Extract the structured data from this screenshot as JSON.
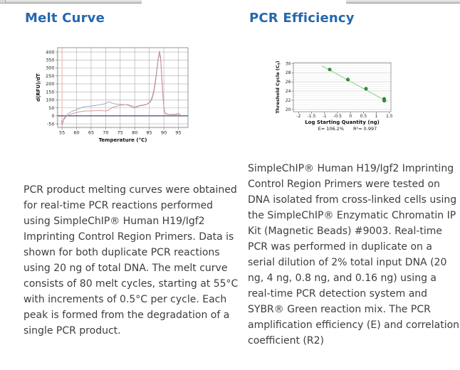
{
  "colors": {
    "heading_blue": "#2568ae",
    "body_text": "#3d3d3d"
  },
  "left_panel": {
    "heading": "Melt Curve",
    "caption": "PCR product melting curves were obtained for real-time PCR reactions performed using SimpleChIP® Human H19/Igf2 Imprinting Control Region Primers. Data is shown for both duplicate PCR reactions using 20 ng of total DNA. The melt curve consists of 80 melt cycles, starting at 55°C with increments of 0.5°C per cycle. Each peak is formed from the degradation of a single PCR product."
  },
  "right_panel": {
    "heading": "PCR Efficiency",
    "caption": "SimpleChIP® Human H19/Igf2 Imprinting Control Region Primers were tested on DNA isolated from cross-linked cells using the SimpleChIP® Enzymatic Chromatin IP Kit (Magnetic Beads) #9003. Real-time PCR was performed in duplicate on a serial dilution of 2% total input DNA (20 ng, 4 ng, 0.8 ng, and 0.16 ng) using a real-time PCR detection system and SYBR® Green reaction mix. The PCR amplification efficiency (E) and correlation coefficient (R2)"
  },
  "chart_data": [
    {
      "type": "line",
      "title": "Melt Curve",
      "xlabel": "Temperature (°C)",
      "ylabel": "d(RFU)/dT",
      "xlim": [
        53.5,
        98.3
      ],
      "ylim": [
        -72,
        427
      ],
      "xticks": [
        55,
        60,
        65,
        70,
        75,
        80,
        85,
        90,
        95
      ],
      "yticks": [
        -50,
        0,
        50,
        100,
        150,
        200,
        250,
        300,
        350,
        400
      ],
      "grid": true,
      "grid_color": "#ababab",
      "baseline_y": 0,
      "baseline_color": "#34346b",
      "marker_line_x": 55,
      "marker_line_color": "#efaaaa",
      "legend": "none",
      "series": [
        {
          "name": "pcr-replicate-1-blue",
          "color": "#98a1c9",
          "points": [
            [
              54.8,
              -28
            ],
            [
              55.1,
              -52
            ],
            [
              55.5,
              -22
            ],
            [
              56,
              -6
            ],
            [
              56.5,
              4
            ],
            [
              57,
              12
            ],
            [
              58,
              24
            ],
            [
              59,
              33
            ],
            [
              60,
              40
            ],
            [
              61,
              47
            ],
            [
              62,
              53
            ],
            [
              63,
              58
            ],
            [
              64,
              60
            ],
            [
              65,
              62
            ],
            [
              66,
              64
            ],
            [
              67,
              67
            ],
            [
              68,
              70
            ],
            [
              69,
              73
            ],
            [
              70,
              77
            ],
            [
              70.8,
              86
            ],
            [
              71.3,
              88
            ],
            [
              72,
              81
            ],
            [
              73,
              76
            ],
            [
              74,
              73
            ],
            [
              75,
              72
            ],
            [
              76,
              71
            ],
            [
              77,
              70
            ],
            [
              78,
              64
            ],
            [
              79,
              55
            ],
            [
              80,
              48
            ],
            [
              81,
              57
            ],
            [
              82,
              64
            ],
            [
              83,
              66
            ],
            [
              84,
              71
            ],
            [
              85,
              81
            ],
            [
              85.5,
              90
            ],
            [
              86,
              110
            ],
            [
              86.5,
              142
            ],
            [
              87,
              192
            ],
            [
              87.5,
              262
            ],
            [
              88,
              342
            ],
            [
              88.45,
              406
            ],
            [
              88.9,
              370
            ],
            [
              89.3,
              250
            ],
            [
              89.7,
              130
            ],
            [
              90,
              60
            ],
            [
              90.4,
              20
            ],
            [
              90.8,
              13
            ],
            [
              91.5,
              11
            ],
            [
              92.5,
              10
            ],
            [
              93.5,
              10
            ],
            [
              94.5,
              12
            ],
            [
              95,
              14
            ],
            [
              95.7,
              10
            ]
          ]
        },
        {
          "name": "pcr-replicate-2-red",
          "color": "#d08e8e",
          "points": [
            [
              54.8,
              -32
            ],
            [
              55.1,
              -56
            ],
            [
              55.5,
              -28
            ],
            [
              56,
              -13
            ],
            [
              56.5,
              -4
            ],
            [
              57,
              2
            ],
            [
              58,
              10
            ],
            [
              59,
              16
            ],
            [
              60,
              21
            ],
            [
              61,
              25
            ],
            [
              62,
              28
            ],
            [
              63,
              30
            ],
            [
              64,
              31
            ],
            [
              65,
              31
            ],
            [
              66,
              32
            ],
            [
              67,
              33
            ],
            [
              68,
              33
            ],
            [
              69,
              32
            ],
            [
              70,
              31
            ],
            [
              70.8,
              34
            ],
            [
              71.5,
              42
            ],
            [
              72,
              50
            ],
            [
              73,
              56
            ],
            [
              74,
              61
            ],
            [
              75,
              66
            ],
            [
              76,
              69
            ],
            [
              77,
              71
            ],
            [
              78,
              69
            ],
            [
              79,
              62
            ],
            [
              80,
              56
            ],
            [
              81,
              61
            ],
            [
              82,
              66
            ],
            [
              83,
              69
            ],
            [
              84,
              73
            ],
            [
              85,
              83
            ],
            [
              85.5,
              98
            ],
            [
              86,
              120
            ],
            [
              86.5,
              155
            ],
            [
              87,
              210
            ],
            [
              87.5,
              280
            ],
            [
              88,
              355
            ],
            [
              88.4,
              393
            ],
            [
              88.9,
              350
            ],
            [
              89.3,
              230
            ],
            [
              89.7,
              115
            ],
            [
              90,
              50
            ],
            [
              90.4,
              15
            ],
            [
              90.8,
              10
            ],
            [
              91.5,
              9
            ],
            [
              92.5,
              8
            ],
            [
              93.5,
              8
            ],
            [
              94.5,
              9
            ],
            [
              95,
              11
            ],
            [
              95.7,
              8
            ]
          ]
        }
      ]
    },
    {
      "type": "scatter",
      "title": "PCR Efficiency",
      "xlabel": "Log Starting Quantity (ng)",
      "ylabel": "Threshold Cycle (CT)",
      "ylabel_parts": {
        "main": "Threshold Cycle (C",
        "sub": "T",
        "end": ")"
      },
      "xlim": [
        -2.2,
        1.56
      ],
      "ylim": [
        19.5,
        30.2
      ],
      "xticks": [
        -2,
        -1.5,
        -1,
        -0.5,
        0,
        0.5,
        1,
        1.5
      ],
      "yticks": [
        20,
        22,
        24,
        26,
        28,
        30
      ],
      "grid": "horizontal",
      "grid_major_color": "#c9c9c9",
      "grid_minor_color": "#e7e7e7",
      "points": [
        [
          -0.8,
          28.7
        ],
        [
          -0.1,
          26.5
        ],
        [
          0.6,
          24.5
        ],
        [
          1.3,
          22.3
        ],
        [
          1.3,
          21.9
        ]
      ],
      "point_color": "#2f9638",
      "point_edge_color": "#176b24",
      "trendline": {
        "from": [
          -1.1,
          29.5
        ],
        "to": [
          1.42,
          21.7
        ],
        "color": "#9ed69a"
      },
      "stats": {
        "e_label": "E= 106.2%",
        "r2_label": "R²= 0.997"
      }
    }
  ]
}
